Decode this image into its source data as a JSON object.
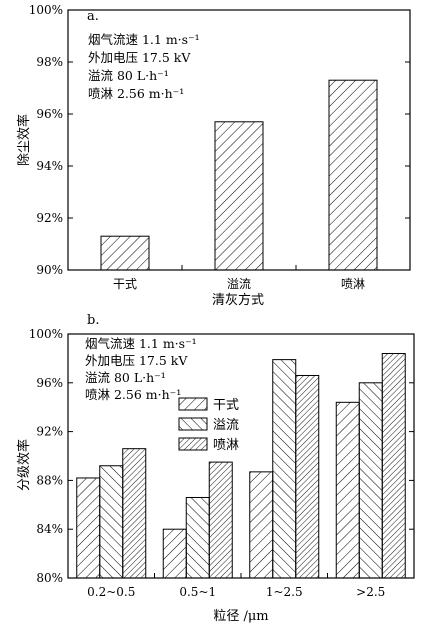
{
  "chart_data": [
    {
      "type": "bar",
      "panel_label": "a.",
      "categories": [
        "干式",
        "溢流",
        "喷淋"
      ],
      "values": [
        91.3,
        95.7,
        97.3
      ],
      "ylim": [
        90,
        100
      ],
      "yticks": [
        90,
        92,
        94,
        96,
        98,
        100
      ],
      "ytick_labels": [
        "90%",
        "92%",
        "94%",
        "96%",
        "98%",
        "100%"
      ],
      "xlabel": "清灰方式",
      "ylabel": "除尘效率",
      "annotations": [
        "烟气流速 1.1 m·s⁻¹",
        "外加电压 17.5 kV",
        "溢流 80 L·h⁻¹",
        "喷淋 2.56 m·h⁻¹"
      ],
      "grid": false
    },
    {
      "type": "bar",
      "panel_label": "b.",
      "categories": [
        "0.2~0.5",
        "0.5~1",
        "1~2.5",
        ">2.5"
      ],
      "series": [
        {
          "name": "干式",
          "values": [
            88.2,
            84.0,
            88.7,
            94.4
          ]
        },
        {
          "name": "溢流",
          "values": [
            89.2,
            86.6,
            97.9,
            96.0
          ]
        },
        {
          "name": "喷淋",
          "values": [
            90.6,
            89.5,
            96.6,
            98.4
          ]
        }
      ],
      "ylim": [
        80,
        100
      ],
      "yticks": [
        80,
        84,
        88,
        92,
        96,
        100
      ],
      "ytick_labels": [
        "80%",
        "84%",
        "88%",
        "92%",
        "96%",
        "100%"
      ],
      "xlabel": "粒径 /μm",
      "ylabel": "分级效率",
      "annotations": [
        "烟气流速 1.1 m·s⁻¹",
        "外加电压 17.5 kV",
        "溢流 80 L·h⁻¹",
        "喷淋 2.56 m·h⁻¹"
      ],
      "legend_position": "center-left",
      "grid": false
    }
  ]
}
